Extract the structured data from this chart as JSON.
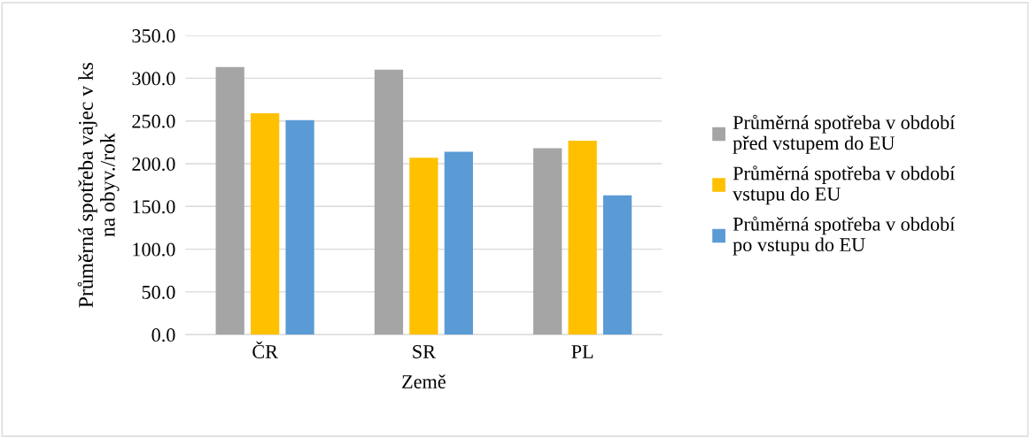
{
  "chart_data": {
    "type": "bar",
    "xlabel": "Země",
    "ylabel": "Průměrná spotřeba vajec v ks\nna obyv./rok",
    "categories": [
      "ČR",
      "SR",
      "PL"
    ],
    "series": [
      {
        "name": "Průměrná spotřeba v období\npřed vstupem do EU",
        "color": "#a5a5a5",
        "values": [
          313,
          310,
          218
        ]
      },
      {
        "name": "Průměrná spotřeba v období\nvstupu do EU",
        "color": "#ffc000",
        "values": [
          259,
          207,
          227
        ]
      },
      {
        "name": "Průměrná spotřeba v období\npo vstupu do EU",
        "color": "#5b9bd5",
        "values": [
          251,
          214,
          163
        ]
      }
    ],
    "ylim": [
      0,
      350
    ],
    "yticks": [
      {
        "value": 0,
        "label": "0.0"
      },
      {
        "value": 50,
        "label": "50.0"
      },
      {
        "value": 100,
        "label": "100.0"
      },
      {
        "value": 150,
        "label": "150.0"
      },
      {
        "value": 200,
        "label": "200.0"
      },
      {
        "value": 250,
        "label": "250.0"
      },
      {
        "value": 300,
        "label": "300.0"
      },
      {
        "value": 350,
        "label": "350.0"
      }
    ],
    "grid": "y",
    "legend": "right"
  }
}
